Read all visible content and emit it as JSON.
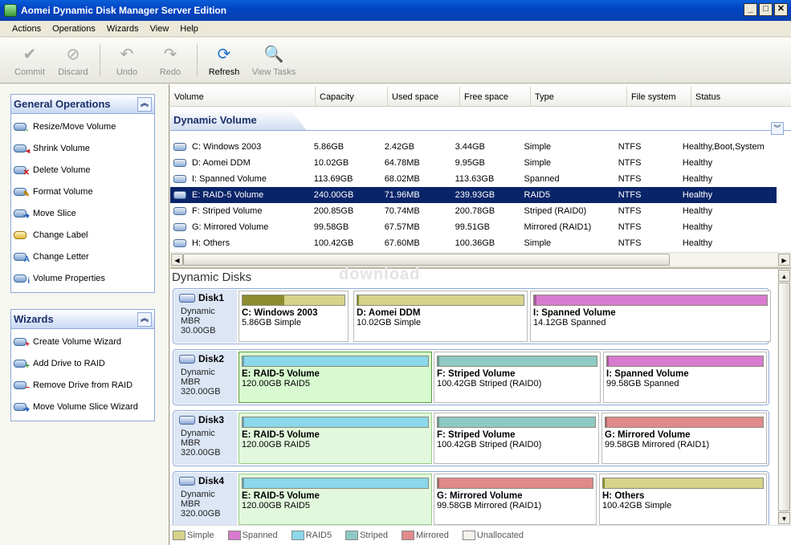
{
  "window": {
    "title": "Aomei Dynamic Disk Manager Server Edition"
  },
  "menu": [
    "Actions",
    "Operations",
    "Wizards",
    "View",
    "Help"
  ],
  "toolbar": {
    "commit": "Commit",
    "discard": "Discard",
    "undo": "Undo",
    "redo": "Redo",
    "refresh": "Refresh",
    "view_tasks": "View Tasks"
  },
  "general_ops": {
    "title": "General Operations",
    "items": [
      "Resize/Move Volume",
      "Shrink Volume",
      "Delete Volume",
      "Format Volume",
      "Move Slice",
      "Change Label",
      "Change Letter",
      "Volume Properties"
    ]
  },
  "wizards": {
    "title": "Wizards",
    "items": [
      "Create Volume Wizard",
      "Add Drive to RAID",
      "Remove Drive from RAID",
      "Move Volume Slice Wizard"
    ]
  },
  "volume_table": {
    "columns": [
      "Volume",
      "Capacity",
      "Used space",
      "Free space",
      "Type",
      "File system",
      "Status"
    ],
    "section": "Dynamic Volume",
    "rows": [
      {
        "volume": "C: Windows 2003",
        "capacity": "5.86GB",
        "used": "2.42GB",
        "free": "3.44GB",
        "type": "Simple",
        "fs": "NTFS",
        "status": "Healthy,Boot,System"
      },
      {
        "volume": "D: Aomei DDM",
        "capacity": "10.02GB",
        "used": "64.78MB",
        "free": "9.95GB",
        "type": "Simple",
        "fs": "NTFS",
        "status": "Healthy"
      },
      {
        "volume": "I: Spanned Volume",
        "capacity": "113.69GB",
        "used": "68.02MB",
        "free": "113.63GB",
        "type": "Spanned",
        "fs": "NTFS",
        "status": "Healthy"
      },
      {
        "volume": "E: RAID-5 Volume",
        "capacity": "240.00GB",
        "used": "71.96MB",
        "free": "239.93GB",
        "type": "RAID5",
        "fs": "NTFS",
        "status": "Healthy"
      },
      {
        "volume": "F: Striped Volume",
        "capacity": "200.85GB",
        "used": "70.74MB",
        "free": "200.78GB",
        "type": "Striped (RAID0)",
        "fs": "NTFS",
        "status": "Healthy"
      },
      {
        "volume": "G: Mirrored Volume",
        "capacity": "99.58GB",
        "used": "67.57MB",
        "free": "99.51GB",
        "type": "Mirrored (RAID1)",
        "fs": "NTFS",
        "status": "Healthy"
      },
      {
        "volume": "H: Others",
        "capacity": "100.42GB",
        "used": "67.60MB",
        "free": "100.36GB",
        "type": "Simple",
        "fs": "NTFS",
        "status": "Healthy"
      }
    ],
    "selected_index": 3
  },
  "dynamic_disks": {
    "title": "Dynamic Disks",
    "watermark": "download",
    "disks": [
      {
        "name": "Disk1",
        "type": "Dynamic MBR",
        "size": "30.00GB",
        "volumes": [
          {
            "title": "C: Windows 2003",
            "sub": "5.86GB Simple",
            "kind": "simple",
            "used_pct": 41
          },
          {
            "title": "D: Aomei DDM",
            "sub": "10.02GB Simple",
            "kind": "simple",
            "used_pct": 1
          },
          {
            "title": "I: Spanned Volume",
            "sub": "14.12GB Spanned",
            "kind": "spanned",
            "used_pct": 1
          }
        ]
      },
      {
        "name": "Disk2",
        "type": "Dynamic MBR",
        "size": "320.00GB",
        "volumes": [
          {
            "title": "E: RAID-5 Volume",
            "sub": "120.00GB RAID5",
            "kind": "raid5",
            "used_pct": 1,
            "selected": true
          },
          {
            "title": "F: Striped Volume",
            "sub": "100.42GB Striped (RAID0)",
            "kind": "striped",
            "used_pct": 1
          },
          {
            "title": "I: Spanned Volume",
            "sub": "99.58GB Spanned",
            "kind": "spanned",
            "used_pct": 1
          }
        ]
      },
      {
        "name": "Disk3",
        "type": "Dynamic MBR",
        "size": "320.00GB",
        "volumes": [
          {
            "title": "E: RAID-5 Volume",
            "sub": "120.00GB RAID5",
            "kind": "raid5",
            "used_pct": 1,
            "selected_light": true
          },
          {
            "title": "F: Striped Volume",
            "sub": "100.42GB Striped (RAID0)",
            "kind": "striped",
            "used_pct": 1
          },
          {
            "title": "G: Mirrored Volume",
            "sub": "99.58GB Mirrored (RAID1)",
            "kind": "mirrored",
            "used_pct": 1
          }
        ]
      },
      {
        "name": "Disk4",
        "type": "Dynamic MBR",
        "size": "320.00GB",
        "volumes": [
          {
            "title": "E: RAID-5 Volume",
            "sub": "120.00GB RAID5",
            "kind": "raid5",
            "used_pct": 1,
            "selected_light": true
          },
          {
            "title": "G: Mirrored Volume",
            "sub": "99.58GB Mirrored (RAID1)",
            "kind": "mirrored",
            "used_pct": 1
          },
          {
            "title": "H: Others",
            "sub": "100.42GB Simple",
            "kind": "simple",
            "used_pct": 1
          }
        ]
      }
    ]
  },
  "legend": [
    {
      "label": "Simple",
      "color": "#d6d48a"
    },
    {
      "label": "Spanned",
      "color": "#d77ad0"
    },
    {
      "label": "RAID5",
      "color": "#8ad8ea"
    },
    {
      "label": "Striped",
      "color": "#8fc9c4"
    },
    {
      "label": "Mirrored",
      "color": "#e08a8a"
    },
    {
      "label": "Unallocated",
      "color": "#f4f2ea"
    }
  ],
  "colors": {
    "simple": "#d6d48a",
    "simple_used": "#8c8c30",
    "spanned": "#d77ad0",
    "raid5": "#8ad8ea",
    "striped": "#8fc9c4",
    "mirrored": "#e08a8a",
    "selection": "#0a246a"
  }
}
